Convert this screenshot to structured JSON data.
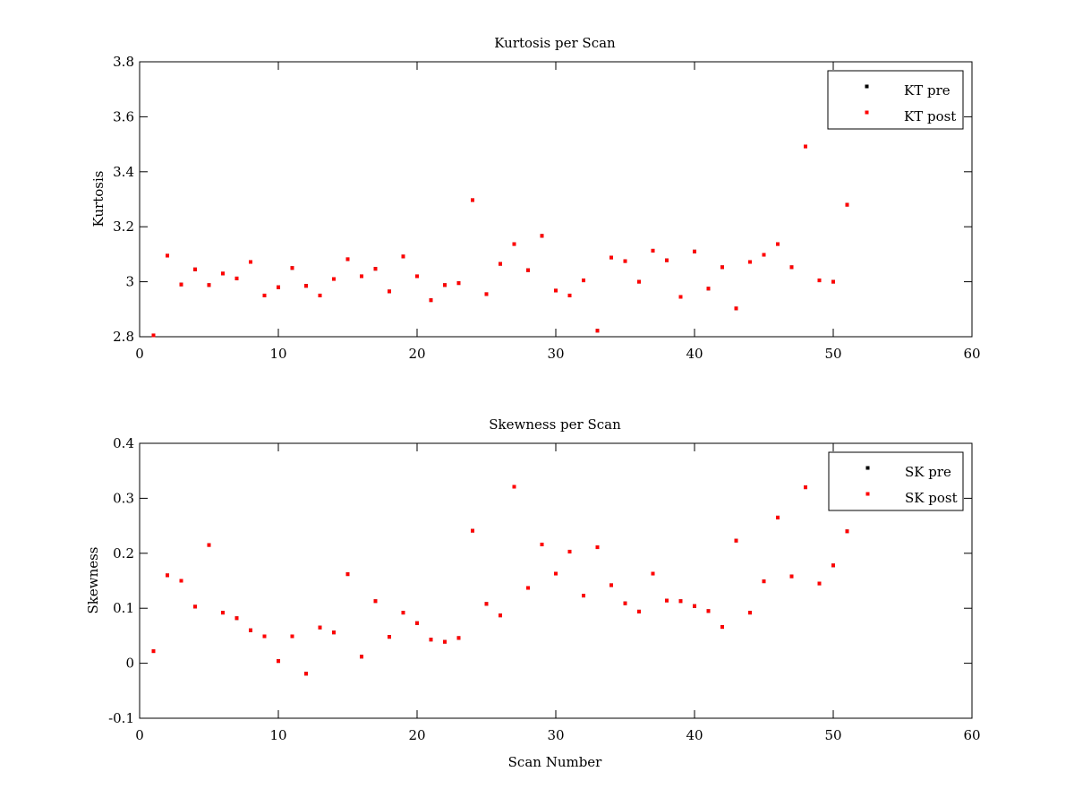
{
  "chart_data": [
    {
      "type": "scatter",
      "title": "Kurtosis per Scan",
      "xlabel": "",
      "ylabel": "Kurtosis",
      "xlim": [
        0,
        60
      ],
      "ylim": [
        2.8,
        3.8
      ],
      "xticks": [
        "0",
        "10",
        "20",
        "30",
        "40",
        "50",
        "60"
      ],
      "yticks": [
        "2.8",
        "3",
        "3.2",
        "3.4",
        "3.6",
        "3.8"
      ],
      "grid": false,
      "legend_position": "top-right",
      "series": [
        {
          "name": "KT pre",
          "color": "#000000",
          "x": [
            1,
            2,
            3,
            4,
            5,
            6,
            7,
            8,
            9,
            10,
            11,
            12,
            13,
            14,
            15,
            16,
            17,
            18,
            19,
            20,
            21,
            22,
            23,
            24,
            25,
            26,
            27,
            28,
            29,
            30,
            31,
            32,
            33,
            34,
            35,
            36,
            37,
            38,
            39,
            40,
            41,
            42,
            43,
            44,
            45,
            46,
            47,
            48,
            49,
            50,
            51
          ],
          "y": [
            2.805,
            3.095,
            2.99,
            3.045,
            2.988,
            3.03,
            3.012,
            3.072,
            2.95,
            2.98,
            3.05,
            2.985,
            2.95,
            3.01,
            3.082,
            3.02,
            3.047,
            2.965,
            3.092,
            3.02,
            2.933,
            2.988,
            2.995,
            3.297,
            2.955,
            3.065,
            3.137,
            3.042,
            3.167,
            2.968,
            2.95,
            3.005,
            2.822,
            3.088,
            3.075,
            3.0,
            3.113,
            3.078,
            2.945,
            3.11,
            2.975,
            3.053,
            2.903,
            3.072,
            3.098,
            3.137,
            3.053,
            3.492,
            3.005,
            3.0,
            3.28
          ]
        },
        {
          "name": "KT post",
          "color": "#ff0000",
          "x": [
            1,
            2,
            3,
            4,
            5,
            6,
            7,
            8,
            9,
            10,
            11,
            12,
            13,
            14,
            15,
            16,
            17,
            18,
            19,
            20,
            21,
            22,
            23,
            24,
            25,
            26,
            27,
            28,
            29,
            30,
            31,
            32,
            33,
            34,
            35,
            36,
            37,
            38,
            39,
            40,
            41,
            42,
            43,
            44,
            45,
            46,
            47,
            48,
            49,
            50,
            51
          ],
          "y": [
            2.805,
            3.095,
            2.99,
            3.045,
            2.988,
            3.03,
            3.012,
            3.072,
            2.95,
            2.98,
            3.05,
            2.985,
            2.95,
            3.01,
            3.082,
            3.02,
            3.047,
            2.965,
            3.092,
            3.02,
            2.933,
            2.988,
            2.995,
            3.297,
            2.955,
            3.065,
            3.137,
            3.042,
            3.167,
            2.968,
            2.95,
            3.005,
            2.822,
            3.088,
            3.075,
            3.0,
            3.113,
            3.078,
            2.945,
            3.11,
            2.975,
            3.053,
            2.903,
            3.072,
            3.098,
            3.137,
            3.053,
            3.492,
            3.005,
            3.0,
            3.28
          ]
        }
      ]
    },
    {
      "type": "scatter",
      "title": "Skewness per Scan",
      "xlabel": "Scan Number",
      "ylabel": "Skewness",
      "xlim": [
        0,
        60
      ],
      "ylim": [
        -0.1,
        0.4
      ],
      "xticks": [
        "0",
        "10",
        "20",
        "30",
        "40",
        "50",
        "60"
      ],
      "yticks": [
        "-0.1",
        "0",
        "0.1",
        "0.2",
        "0.3",
        "0.4"
      ],
      "grid": false,
      "legend_position": "top-right",
      "series": [
        {
          "name": "SK pre",
          "color": "#000000",
          "x": [
            1,
            2,
            3,
            4,
            5,
            6,
            7,
            8,
            9,
            10,
            11,
            12,
            13,
            14,
            15,
            16,
            17,
            18,
            19,
            20,
            21,
            22,
            23,
            24,
            25,
            26,
            27,
            28,
            29,
            30,
            31,
            32,
            33,
            34,
            35,
            36,
            37,
            38,
            39,
            40,
            41,
            42,
            43,
            44,
            45,
            46,
            47,
            48,
            49,
            50,
            51
          ],
          "y": [
            0.022,
            0.16,
            0.15,
            0.103,
            0.215,
            0.092,
            0.082,
            0.06,
            0.049,
            0.004,
            0.049,
            -0.019,
            0.065,
            0.056,
            0.162,
            0.012,
            0.113,
            0.048,
            0.092,
            0.073,
            0.043,
            0.039,
            0.046,
            0.241,
            0.108,
            0.087,
            0.321,
            0.137,
            0.216,
            0.163,
            0.203,
            0.123,
            0.211,
            0.142,
            0.109,
            0.094,
            0.163,
            0.114,
            0.113,
            0.104,
            0.095,
            0.066,
            0.223,
            0.092,
            0.149,
            0.265,
            0.158,
            0.32,
            0.145,
            0.178,
            0.24
          ]
        },
        {
          "name": "SK post",
          "color": "#ff0000",
          "x": [
            1,
            2,
            3,
            4,
            5,
            6,
            7,
            8,
            9,
            10,
            11,
            12,
            13,
            14,
            15,
            16,
            17,
            18,
            19,
            20,
            21,
            22,
            23,
            24,
            25,
            26,
            27,
            28,
            29,
            30,
            31,
            32,
            33,
            34,
            35,
            36,
            37,
            38,
            39,
            40,
            41,
            42,
            43,
            44,
            45,
            46,
            47,
            48,
            49,
            50,
            51
          ],
          "y": [
            0.022,
            0.16,
            0.15,
            0.103,
            0.215,
            0.092,
            0.082,
            0.06,
            0.049,
            0.004,
            0.049,
            -0.019,
            0.065,
            0.056,
            0.162,
            0.012,
            0.113,
            0.048,
            0.092,
            0.073,
            0.043,
            0.039,
            0.046,
            0.241,
            0.108,
            0.087,
            0.321,
            0.137,
            0.216,
            0.163,
            0.203,
            0.123,
            0.211,
            0.142,
            0.109,
            0.094,
            0.163,
            0.114,
            0.113,
            0.104,
            0.095,
            0.066,
            0.223,
            0.092,
            0.149,
            0.265,
            0.158,
            0.32,
            0.145,
            0.178,
            0.24
          ]
        }
      ]
    }
  ]
}
